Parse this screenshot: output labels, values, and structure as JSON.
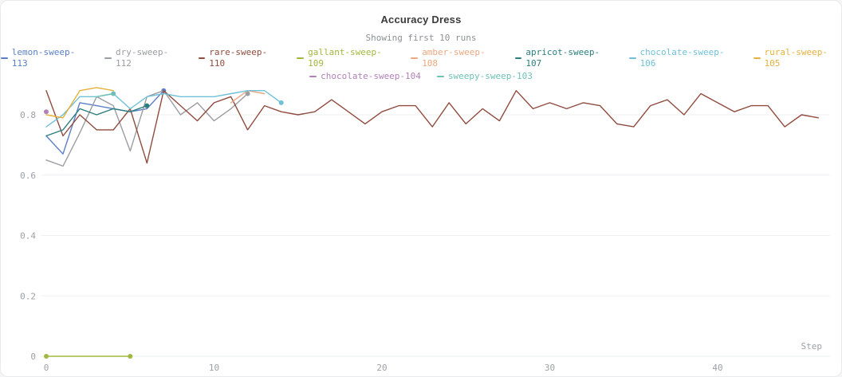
{
  "header": {
    "title": "Accuracy Dress",
    "subtitle": "Showing first 10 runs"
  },
  "chart_data": {
    "type": "line",
    "title": "Accuracy Dress",
    "subtitle": "Showing first 10 runs",
    "xlabel": "Step",
    "ylabel": "",
    "xlim": [
      0,
      47
    ],
    "ylim": [
      0,
      0.9
    ],
    "xticks": [
      0,
      10,
      20,
      30,
      40
    ],
    "yticks": [
      0,
      0.2,
      0.4,
      0.6,
      0.8
    ],
    "grid": "horizontal",
    "legend_position": "top",
    "legend_rows": [
      8,
      2
    ],
    "grid_color": "#eef0f2",
    "tick_color": "#9ba0a6",
    "series": [
      {
        "name": "lemon-sweep-113",
        "color": "#5b7fc7",
        "x_start": 0,
        "dot_end": true,
        "y": [
          0.73,
          0.67,
          0.84,
          0.83,
          0.82,
          0.81,
          0.82,
          0.88
        ]
      },
      {
        "name": "dry-sweep-112",
        "color": "#9a9da1",
        "x_start": 0,
        "dot_end": true,
        "y": [
          0.65,
          0.63,
          0.74,
          0.86,
          0.83,
          0.68,
          0.86,
          0.88,
          0.8,
          0.84,
          0.78,
          0.82,
          0.87
        ]
      },
      {
        "name": "rare-sweep-110",
        "color": "#8f4b3e",
        "x_start": 0,
        "dot_end": false,
        "y": [
          0.88,
          0.73,
          0.8,
          0.75,
          0.75,
          0.82,
          0.64,
          0.88,
          0.83,
          0.78,
          0.84,
          0.86,
          0.75,
          0.83,
          0.81,
          0.8,
          0.81,
          0.85,
          0.81,
          0.77,
          0.81,
          0.83,
          0.83,
          0.76,
          0.84,
          0.77,
          0.82,
          0.78,
          0.88,
          0.82,
          0.84,
          0.82,
          0.84,
          0.83,
          0.77,
          0.76,
          0.83,
          0.85,
          0.8,
          0.87,
          0.84,
          0.81,
          0.83,
          0.83,
          0.76,
          0.8,
          0.79
        ]
      },
      {
        "name": "gallant-sweep-109",
        "color": "#a0b83f",
        "x_start": 0,
        "dot_start": true,
        "dot_end": true,
        "y": [
          0,
          0,
          0,
          0,
          0,
          0
        ]
      },
      {
        "name": "amber-sweep-108",
        "color": "#e9a87f",
        "x_start": 11,
        "dot_end": false,
        "y": [
          0.84,
          0.88,
          0.87
        ]
      },
      {
        "name": "apricot-sweep-107",
        "color": "#2b7e7e",
        "x_start": 0,
        "dot_end": true,
        "y": [
          0.73,
          0.75,
          0.82,
          0.8,
          0.82,
          0.81,
          0.83
        ]
      },
      {
        "name": "chocolate-sweep-106",
        "color": "#70c1d8",
        "x_start": 0,
        "dot_end": true,
        "y": [
          0.76,
          0.8,
          0.86,
          0.86,
          0.87,
          0.82,
          0.86,
          0.87,
          0.86,
          0.86,
          0.86,
          0.87,
          0.88,
          0.88,
          0.84
        ]
      },
      {
        "name": "rural-sweep-105",
        "color": "#e5b13c",
        "x_start": 0,
        "dot_end": false,
        "y": [
          0.8,
          0.79,
          0.88,
          0.89,
          0.88
        ]
      },
      {
        "name": "chocolate-sweep-104",
        "color": "#b281b9",
        "x_start": 0,
        "dot_start": true,
        "y": [
          0.81
        ]
      },
      {
        "name": "sweepy-sweep-103",
        "color": "#6fc0b6",
        "x_start": 3,
        "dot_end": true,
        "y": [
          0.86,
          0.87
        ]
      }
    ]
  }
}
